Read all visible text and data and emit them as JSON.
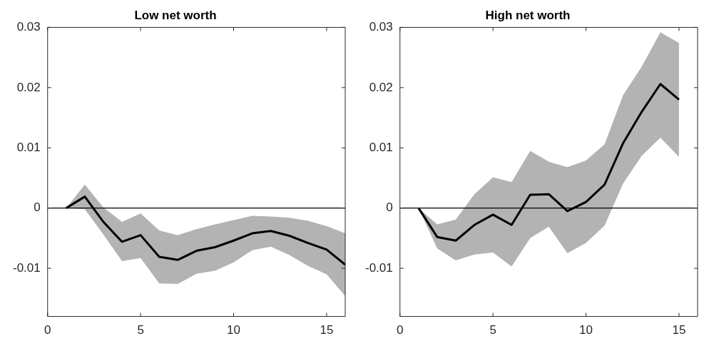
{
  "chart_data": [
    {
      "type": "line",
      "title": "Low net worth",
      "x": [
        1,
        2,
        3,
        4,
        5,
        6,
        7,
        8,
        9,
        10,
        11,
        12,
        13,
        14,
        15,
        16
      ],
      "series": [
        {
          "color": "#000000",
          "values": [
            0,
            0.0019,
            -0.0023,
            -0.0056,
            -0.0045,
            -0.0081,
            -0.0086,
            -0.0071,
            -0.0065,
            -0.0054,
            -0.0042,
            -0.0038,
            -0.0046,
            -0.0058,
            -0.0069,
            -0.0094
          ],
          "upper": [
            0,
            0.0039,
            0.0001,
            -0.0023,
            -0.0009,
            -0.0037,
            -0.0045,
            -0.0035,
            -0.0027,
            -0.002,
            -0.0013,
            -0.0014,
            -0.0016,
            -0.0021,
            -0.003,
            -0.0042
          ],
          "lower": [
            0,
            -0.0002,
            -0.0044,
            -0.0088,
            -0.0083,
            -0.0125,
            -0.0126,
            -0.0109,
            -0.0104,
            -0.009,
            -0.007,
            -0.0064,
            -0.0078,
            -0.0096,
            -0.011,
            -0.0146
          ]
        }
      ],
      "xlim": [
        0,
        16
      ],
      "xticks": [
        0,
        5,
        10,
        15
      ],
      "ylim": [
        -0.018,
        0.03
      ],
      "yticks": [
        -0.01,
        0,
        0.01,
        0.02,
        0.03
      ],
      "ref_lines": [
        {
          "axis": "y",
          "value": 0,
          "color": "#000000"
        }
      ]
    },
    {
      "type": "line",
      "title": "High net worth",
      "x": [
        1,
        2,
        3,
        4,
        5,
        6,
        7,
        8,
        9,
        10,
        11,
        12,
        13,
        14,
        15
      ],
      "series": [
        {
          "color": "#000000",
          "values": [
            0,
            -0.0048,
            -0.0054,
            -0.0028,
            -0.0011,
            -0.0028,
            0.0022,
            0.0023,
            -0.0005,
            0.001,
            0.0039,
            0.0108,
            0.016,
            0.0206,
            0.018
          ],
          "upper": [
            0,
            -0.0027,
            -0.0019,
            0.0023,
            0.0051,
            0.0043,
            0.0095,
            0.0077,
            0.0068,
            0.0079,
            0.0106,
            0.0188,
            0.0235,
            0.0292,
            0.0274
          ],
          "lower": [
            0,
            -0.0067,
            -0.0087,
            -0.0077,
            -0.0074,
            -0.0097,
            -0.005,
            -0.0031,
            -0.0075,
            -0.0058,
            -0.0029,
            0.0041,
            0.0087,
            0.0117,
            0.0085
          ]
        }
      ],
      "xlim": [
        0,
        16
      ],
      "xticks": [
        0,
        5,
        10,
        15
      ],
      "ylim": [
        -0.018,
        0.03
      ],
      "yticks": [
        -0.01,
        0,
        0.01,
        0.02,
        0.03
      ],
      "ref_lines": [
        {
          "axis": "y",
          "value": 0,
          "color": "#000000"
        }
      ]
    }
  ]
}
